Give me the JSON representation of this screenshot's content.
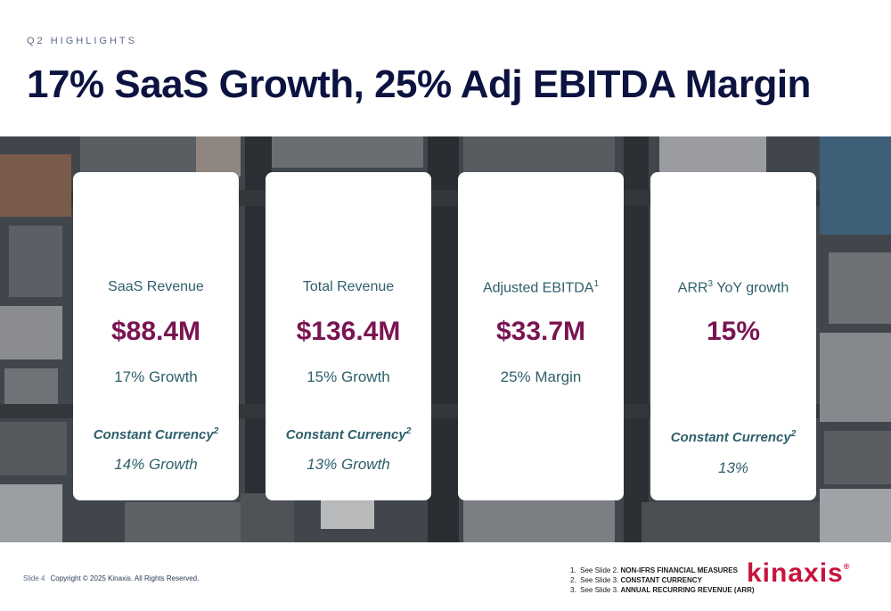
{
  "header": {
    "eyebrow": "Q2 HIGHLIGHTS",
    "title": "17% SaaS Growth, 25% Adj EBITDA Margin"
  },
  "cards": [
    {
      "label": "SaaS Revenue",
      "label_sup": "",
      "value": "$88.4M",
      "sub": "17% Growth",
      "cc_label": "Constant Currency",
      "cc_sup": "2",
      "cc_value": "14% Growth"
    },
    {
      "label": "Total Revenue",
      "label_sup": "",
      "value": "$136.4M",
      "sub": "15% Growth",
      "cc_label": "Constant Currency",
      "cc_sup": "2",
      "cc_value": "13% Growth"
    },
    {
      "label": "Adjusted EBITDA",
      "label_sup": "1",
      "value": "$33.7M",
      "sub": "25% Margin",
      "cc_label": "",
      "cc_sup": "",
      "cc_value": ""
    },
    {
      "label": " YoY growth",
      "label_prefix": "ARR",
      "label_sup": "3",
      "value": "15%",
      "sub": "",
      "cc_label": "Constant Currency",
      "cc_sup": "2",
      "cc_value": "13%"
    }
  ],
  "footer": {
    "slide": "Slide 4",
    "copyright": "Copyright © 2025 Kinaxis. All Rights Reserved.",
    "notes": [
      {
        "num": "1.",
        "text": "See Slide 2.",
        "bold": "NON-IFRS FINANCIAL MEASURES"
      },
      {
        "num": "2.",
        "text": "See Slide 3.",
        "bold": "CONSTANT CURRENCY"
      },
      {
        "num": "3.",
        "text": "See Slide 3.",
        "bold": "ANNUAL RECURRING REVENUE (ARR)"
      }
    ],
    "logo": "Kinaxis",
    "logo_mark": "®"
  },
  "colors": {
    "title": "#0d1340",
    "value": "#7a1451",
    "label": "#2f5f6b",
    "brand": "#c8143c"
  },
  "background_image": "aerial-city-photo"
}
